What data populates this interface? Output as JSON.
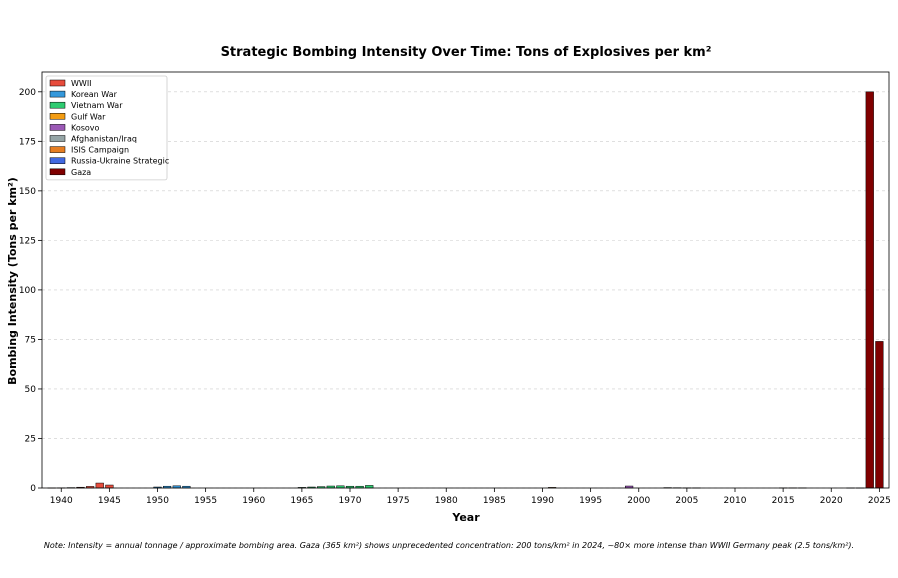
{
  "chart_data": {
    "type": "bar",
    "title": "Strategic Bombing Intensity Over Time: Tons of Explosives per km²",
    "xlabel": "Year",
    "ylabel": "Bombing Intensity (Tons per km²)",
    "xlim": [
      1938,
      2026
    ],
    "ylim": [
      0,
      210
    ],
    "xticks": [
      1940,
      1945,
      1950,
      1955,
      1960,
      1965,
      1970,
      1975,
      1980,
      1985,
      1990,
      1995,
      2000,
      2005,
      2010,
      2015,
      2020,
      2025
    ],
    "yticks": [
      0,
      25,
      50,
      75,
      100,
      125,
      150,
      175,
      200
    ],
    "grid": "y-dashed",
    "legend_position": "top-left",
    "series": [
      {
        "name": "WWII",
        "color": "#e74c3c",
        "x": [
          1939,
          1940,
          1941,
          1942,
          1943,
          1944,
          1945
        ],
        "values": [
          0.05,
          0.1,
          0.2,
          0.4,
          0.8,
          2.5,
          1.5
        ]
      },
      {
        "name": "Korean War",
        "color": "#3498db",
        "x": [
          1950,
          1951,
          1952,
          1953
        ],
        "values": [
          0.5,
          0.9,
          1.1,
          0.9
        ]
      },
      {
        "name": "Vietnam War",
        "color": "#2ecc71",
        "x": [
          1965,
          1966,
          1967,
          1968,
          1969,
          1970,
          1971,
          1972
        ],
        "values": [
          0.3,
          0.5,
          0.7,
          1.0,
          1.1,
          0.9,
          0.9,
          1.3
        ]
      },
      {
        "name": "Gulf War",
        "color": "#f39c12",
        "x": [
          1991
        ],
        "values": [
          0.3
        ]
      },
      {
        "name": "Kosovo",
        "color": "#9b59b6",
        "x": [
          1999
        ],
        "values": [
          1.0
        ]
      },
      {
        "name": "Afghanistan/Iraq",
        "color": "#95a5a6",
        "x": [
          2003,
          2004,
          2005,
          2006
        ],
        "values": [
          0.2,
          0.15,
          0.1,
          0.1
        ]
      },
      {
        "name": "ISIS Campaign",
        "color": "#e67e22",
        "x": [
          2015,
          2016,
          2017
        ],
        "values": [
          0.1,
          0.1,
          0.1
        ]
      },
      {
        "name": "Russia-Ukraine Strategic",
        "color": "#4169e1",
        "x": [
          2022,
          2023
        ],
        "values": [
          0.05,
          0.05
        ]
      },
      {
        "name": "Gaza",
        "color": "#800000",
        "x": [
          2024,
          2025
        ],
        "values": [
          200,
          74
        ]
      }
    ]
  },
  "note": "Note: Intensity = annual tonnage / approximate bombing area. Gaza (365 km²) shows unprecedented concentration: 200 tons/km² in 2024, ~80× more intense than WWII Germany peak (2.5 tons/km²)."
}
